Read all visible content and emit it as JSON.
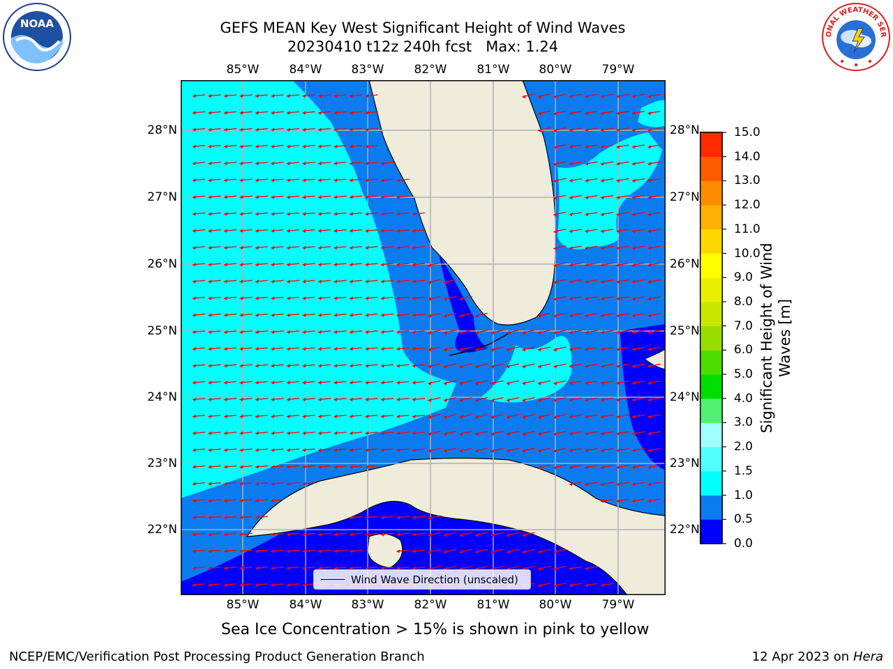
{
  "title": {
    "line1": "GEFS MEAN Key West Significant Height of Wind Waves",
    "line2": "20230410 t12z 240h fcst   Max: 1.24"
  },
  "map": {
    "lon_labels": [
      "85°W",
      "84°W",
      "83°W",
      "82°W",
      "81°W",
      "80°W",
      "79°W"
    ],
    "lat_labels": [
      "28°N",
      "27°N",
      "26°N",
      "25°N",
      "24°N",
      "23°N",
      "22°N"
    ],
    "land_color": "#efecdc",
    "arrow_color": "#ff0000",
    "grid_color": "#b0b0b0",
    "legend_label": "Wind Wave Direction (unscaled)"
  },
  "colorbar": {
    "levels": [
      "0.0",
      "0.5",
      "1.0",
      "1.5",
      "2.0",
      "3.0",
      "4.0",
      "5.0",
      "6.0",
      "7.0",
      "8.0",
      "9.0",
      "10.0",
      "11.0",
      "12.0",
      "13.0",
      "14.0",
      "15.0"
    ],
    "colors": [
      "#0000ff",
      "#0a7cf0",
      "#00ffff",
      "#50ffff",
      "#a0ffff",
      "#50f070",
      "#00dd00",
      "#4ddd00",
      "#99dd00",
      "#c8e800",
      "#e8f000",
      "#ffff00",
      "#ffd700",
      "#ffb000",
      "#ff8c00",
      "#ff5a00",
      "#ff2800"
    ],
    "label": "Significant Height of Wind Waves [m]"
  },
  "note": "Sea Ice Concentration > 15% is shown in pink to yellow",
  "footer": {
    "left": "NCEP/EMC/Verification Post Processing Product Generation Branch",
    "date": "12 Apr 2023 on ",
    "host": "Hera"
  },
  "logos": {
    "noaa_text": "NOAA",
    "nws_text": "NATIONAL WEATHER SERVICE"
  }
}
